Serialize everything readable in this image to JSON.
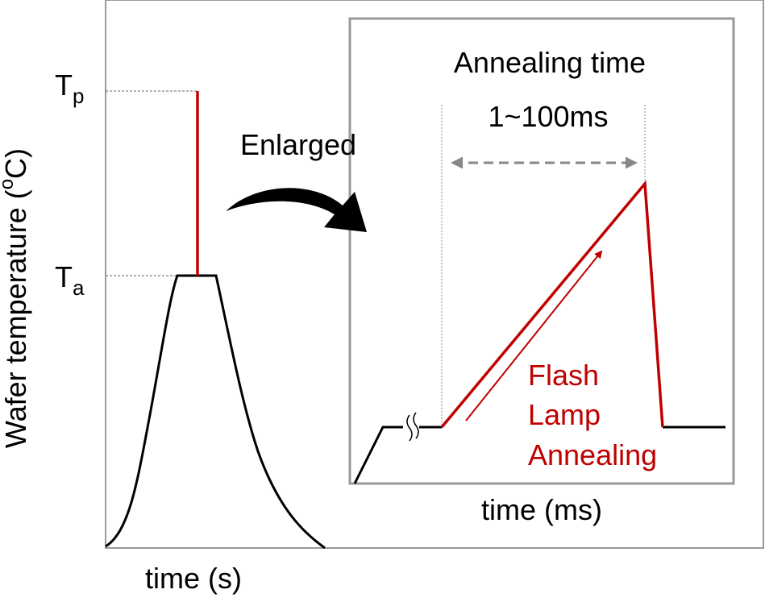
{
  "main_plot": {
    "y_label": {
      "text": "Wafer temperature (",
      "superscript": "o",
      "unit": "C)"
    },
    "x_label": "time (s)",
    "levels": [
      {
        "symbol": "T",
        "subscript": "p"
      },
      {
        "symbol": "T",
        "subscript": "a"
      }
    ]
  },
  "arrow_label": "Enlarged",
  "inset": {
    "title": "Annealing time",
    "duration": "1~100ms",
    "curve_label": [
      "Flash",
      "Lamp",
      "Annealing"
    ],
    "x_label": "time (ms)"
  }
}
